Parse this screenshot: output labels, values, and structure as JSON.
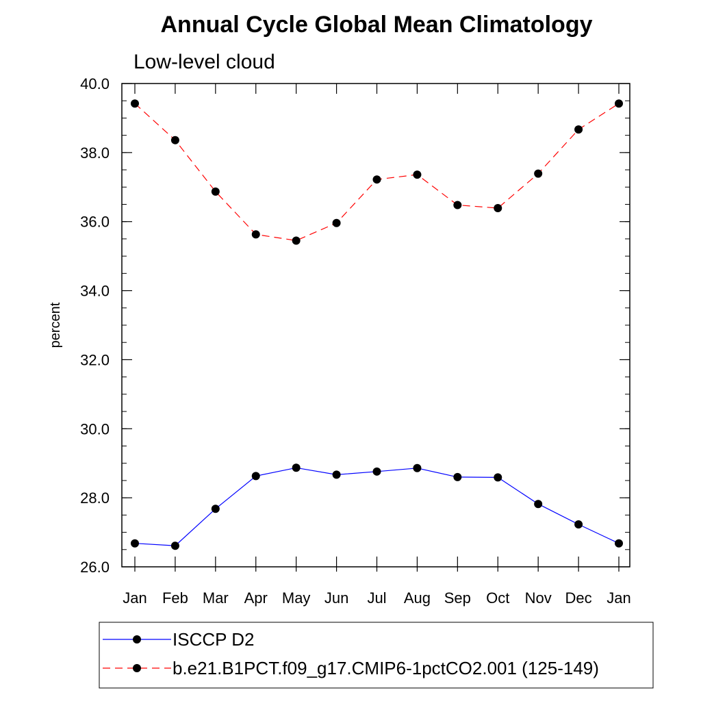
{
  "chart_data": {
    "type": "line",
    "title": "Annual Cycle Global Mean Climatology",
    "subtitle": "Low-level cloud",
    "xlabel": "",
    "ylabel": "percent",
    "categories": [
      "Jan",
      "Feb",
      "Mar",
      "Apr",
      "May",
      "Jun",
      "Jul",
      "Aug",
      "Sep",
      "Oct",
      "Nov",
      "Dec",
      "Jan"
    ],
    "ylim": [
      26.0,
      40.0
    ],
    "yticks": [
      "26.0",
      "28.0",
      "30.0",
      "32.0",
      "34.0",
      "36.0",
      "38.0",
      "40.0"
    ],
    "ytick_values": [
      26,
      28,
      30,
      32,
      34,
      36,
      38,
      40
    ],
    "yminor_step": 0.5,
    "grid": false,
    "legend_position": "bottom",
    "series": [
      {
        "name": "ISCCP D2",
        "color": "#0000ff",
        "dash": "solid",
        "values": [
          26.68,
          26.61,
          27.68,
          28.63,
          28.87,
          28.67,
          28.76,
          28.86,
          28.6,
          28.59,
          27.82,
          27.23,
          26.68
        ]
      },
      {
        "name": "b.e21.B1PCT.f09_g17.CMIP6-1pctCO2.001 (125-149)",
        "color": "#ff0000",
        "dash": "dashed",
        "values": [
          39.42,
          38.36,
          36.87,
          35.63,
          35.45,
          35.96,
          37.22,
          37.36,
          36.48,
          36.39,
          37.39,
          38.67,
          39.42
        ]
      }
    ]
  }
}
